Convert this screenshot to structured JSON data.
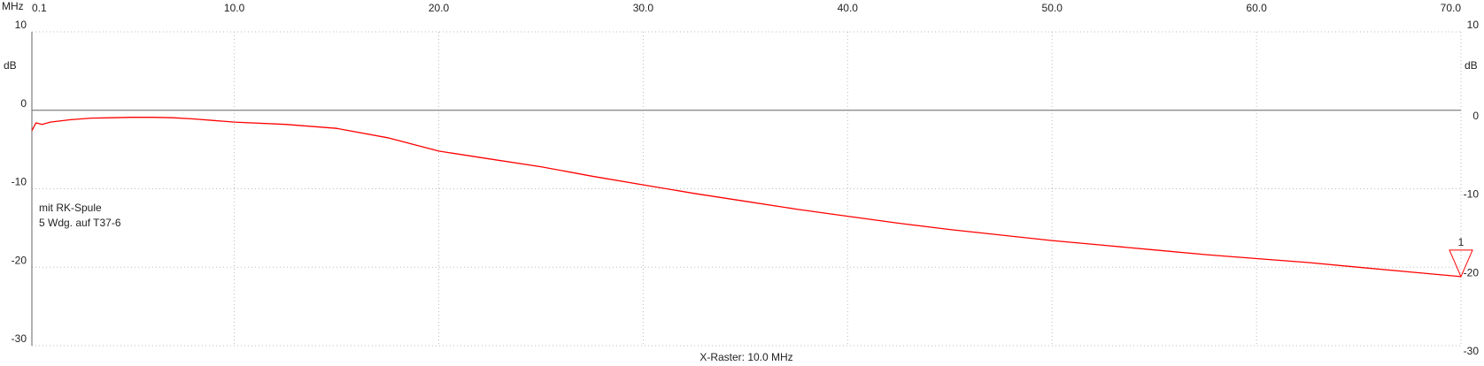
{
  "chart_data": {
    "type": "line",
    "x_unit": "MHz",
    "y_unit": "dB",
    "x_label": "X-Raster: 10.0 MHz",
    "annotations": [
      "mit RK-Spule",
      "5 Wdg. auf T37-6"
    ],
    "x": [
      0.1,
      0.3,
      0.6,
      1,
      2,
      3,
      4,
      5,
      6,
      7,
      8,
      9,
      10,
      12.5,
      15,
      17.5,
      20,
      22.5,
      25,
      27.5,
      30,
      32.5,
      35,
      37.5,
      40,
      42.5,
      45,
      47.5,
      50,
      52.5,
      55,
      57.5,
      60,
      62.5,
      65,
      67.5,
      70
    ],
    "values": [
      -2.6,
      -1.6,
      -1.8,
      -1.5,
      -1.2,
      -1.0,
      -0.95,
      -0.9,
      -0.9,
      -0.95,
      -1.1,
      -1.3,
      -1.5,
      -1.8,
      -2.3,
      -3.5,
      -5.2,
      -6.2,
      -7.2,
      -8.4,
      -9.5,
      -10.6,
      -11.6,
      -12.6,
      -13.5,
      -14.4,
      -15.2,
      -15.9,
      -16.6,
      -17.2,
      -17.8,
      -18.4,
      -18.9,
      -19.4,
      -20.0,
      -20.6,
      -21.2
    ],
    "color": "#ff0000",
    "xlim": [
      0.1,
      70
    ],
    "ylim": [
      -30,
      10
    ],
    "xticks": [
      {
        "value": 0.1,
        "label": "0.1"
      },
      {
        "value": 10,
        "label": "10.0"
      },
      {
        "value": 20,
        "label": "20.0"
      },
      {
        "value": 30,
        "label": "30.0"
      },
      {
        "value": 40,
        "label": "40.0"
      },
      {
        "value": 50,
        "label": "50.0"
      },
      {
        "value": 60,
        "label": "60.0"
      },
      {
        "value": 70,
        "label": "70.0"
      }
    ],
    "yticks": [
      10,
      0,
      -10,
      -20,
      -30
    ],
    "grid": true,
    "marker": {
      "label": "1",
      "x": 70,
      "value": -21.2
    }
  }
}
